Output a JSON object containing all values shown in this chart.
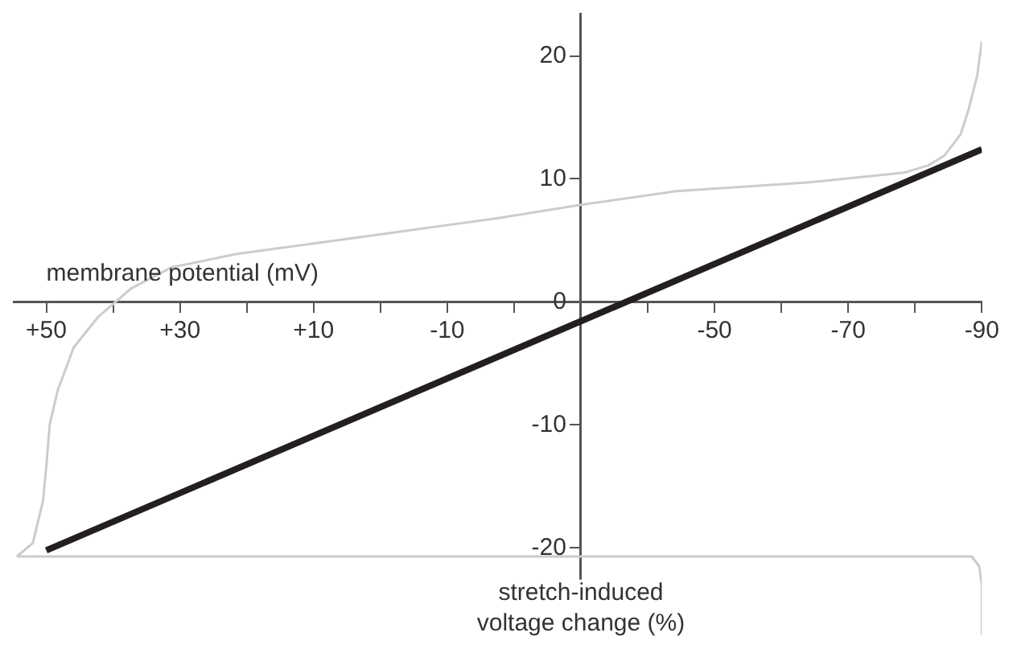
{
  "chart_data": {
    "type": "line",
    "xlabel": "membrane potential (mV)",
    "ylabel": "stretch-induced voltage change (%)",
    "xlim": [
      55,
      -90
    ],
    "ylim": [
      -27.5,
      23.5
    ],
    "xticks": [
      {
        "value": 50,
        "label": "+50"
      },
      {
        "value": 40,
        "label": null
      },
      {
        "value": 30,
        "label": "+30"
      },
      {
        "value": 20,
        "label": null
      },
      {
        "value": 10,
        "label": "+10"
      },
      {
        "value": 0,
        "label": null
      },
      -10,
      {
        "value": -20,
        "label": null
      },
      {
        "value": -30,
        "label": null
      },
      {
        "value": -40,
        "label": null
      },
      -50,
      {
        "value": -60,
        "label": null
      },
      -70,
      {
        "value": -80,
        "label": null
      },
      -90
    ],
    "yticks": [
      -20,
      -10,
      0,
      10,
      20
    ],
    "grid": false,
    "legend": false,
    "marker": "none",
    "line_style": "solid",
    "series": [
      {
        "color": "#cccccc",
        "x": [
          54.4,
          52.0,
          50.5,
          50,
          49.5,
          48.3,
          45.9,
          42.2,
          37.3,
          31.3,
          21.5,
          9.3,
          -2.8,
          -17.4,
          -30.1,
          -44.2,
          -63.7,
          -78.3,
          -82.0,
          -84.4,
          -86.8,
          -88.0,
          -89.3,
          -90.0
        ],
        "values": [
          -20.7,
          -19.6,
          -16.2,
          -13.4,
          -10.0,
          -7.2,
          -3.7,
          -1.2,
          1.1,
          2.8,
          3.9,
          4.8,
          5.7,
          6.8,
          7.9,
          9.0,
          9.7,
          10.5,
          11.1,
          11.9,
          13.6,
          15.6,
          18.4,
          21.2
        ]
      },
      {
        "color": "#cccccc",
        "x": [
          54.4,
          -88.5,
          -89.6,
          -90,
          -90
        ],
        "values": [
          -20.7,
          -20.7,
          -21.5,
          -23,
          -27
        ]
      },
      {
        "color": "#231f20",
        "x": [
          50,
          -90
        ],
        "values": [
          -20.2,
          12.4
        ]
      }
    ]
  }
}
